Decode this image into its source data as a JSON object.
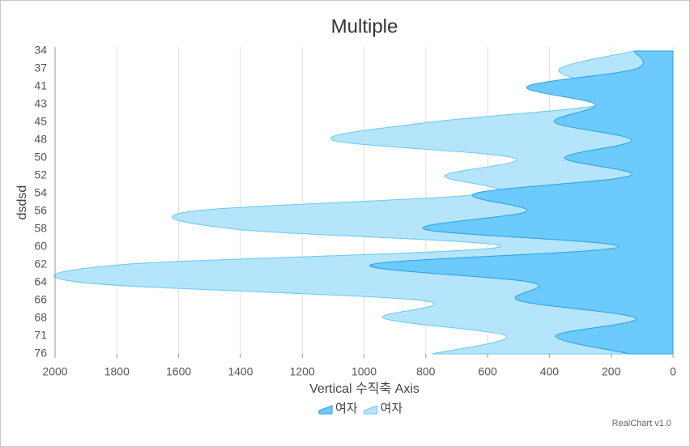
{
  "chart_data": {
    "type": "area",
    "orientation": "horizontal",
    "title": "Multiple",
    "x_label": "Vertical 수직축 Axis",
    "y_label": "dsdsd",
    "credits": "RealChart v1.0",
    "categories": [
      "34",
      "37",
      "41",
      "43",
      "45",
      "48",
      "50",
      "52",
      "54",
      "56",
      "58",
      "60",
      "62",
      "64",
      "66",
      "68",
      "71",
      "76"
    ],
    "series": [
      {
        "name": "여자",
        "color": "#6ccafc",
        "stroke": "#2b9fe3",
        "values": [
          126,
          120,
          472,
          252,
          383,
          134,
          351,
          139,
          642,
          474,
          805,
          176,
          978,
          455,
          500,
          120,
          380,
          139
        ]
      },
      {
        "name": "여자",
        "color": "#b5e5fb",
        "stroke": "#6cc6f5",
        "values": [
          126,
          367,
          252,
          225,
          789,
          1101,
          514,
          739,
          600,
          1560,
          1418,
          561,
          1790,
          1911,
          815,
          936,
          540,
          780
        ]
      }
    ],
    "xlim": [
      2000,
      0
    ],
    "xticks": [
      2000,
      1800,
      1600,
      1400,
      1200,
      1000,
      800,
      600,
      400,
      200,
      0
    ],
    "grid": true,
    "legend": "bottom"
  }
}
